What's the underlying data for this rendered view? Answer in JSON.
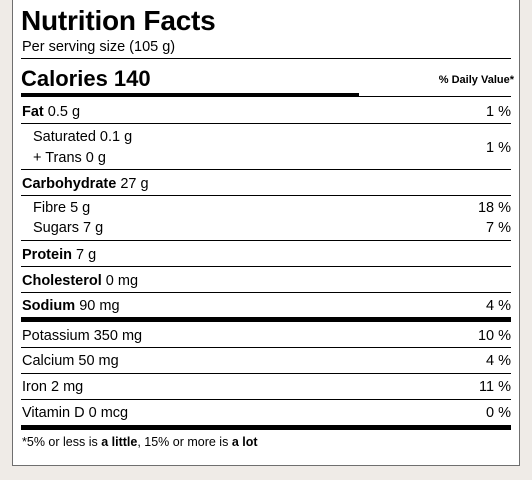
{
  "header": {
    "title": "Nutrition Facts",
    "serving": "Per serving size (105 g)"
  },
  "calories": {
    "label": "Calories 140",
    "daily_value_header": "% Daily Value*"
  },
  "nutrients": {
    "fat": {
      "name": "Fat",
      "amount": "0.5 g",
      "dv": "1 %"
    },
    "saturated": {
      "text": "Saturated 0.1 g"
    },
    "trans": {
      "text": "+ Trans 0 g",
      "dv": "1 %"
    },
    "carbohydrate": {
      "name": "Carbohydrate",
      "amount": "27 g"
    },
    "fibre": {
      "text": "Fibre 5 g",
      "dv": "18 %"
    },
    "sugars": {
      "text": "Sugars 7 g",
      "dv": "7 %"
    },
    "protein": {
      "name": "Protein",
      "amount": "7 g"
    },
    "cholesterol": {
      "name": "Cholesterol",
      "amount": "0 mg"
    },
    "sodium": {
      "name": "Sodium",
      "amount": "90 mg",
      "dv": "4 %"
    }
  },
  "minerals": {
    "potassium": {
      "text": "Potassium 350 mg",
      "dv": "10 %"
    },
    "calcium": {
      "text": "Calcium 50 mg",
      "dv": "4 %"
    },
    "iron": {
      "text": "Iron 2 mg",
      "dv": "11 %"
    },
    "vitamin_d": {
      "text": "Vitamin D 0 mcg",
      "dv": "0 %"
    }
  },
  "footnote": {
    "a": "*5% or less is ",
    "b": "a little",
    "c": ", 15% or more is ",
    "d": "a lot"
  }
}
